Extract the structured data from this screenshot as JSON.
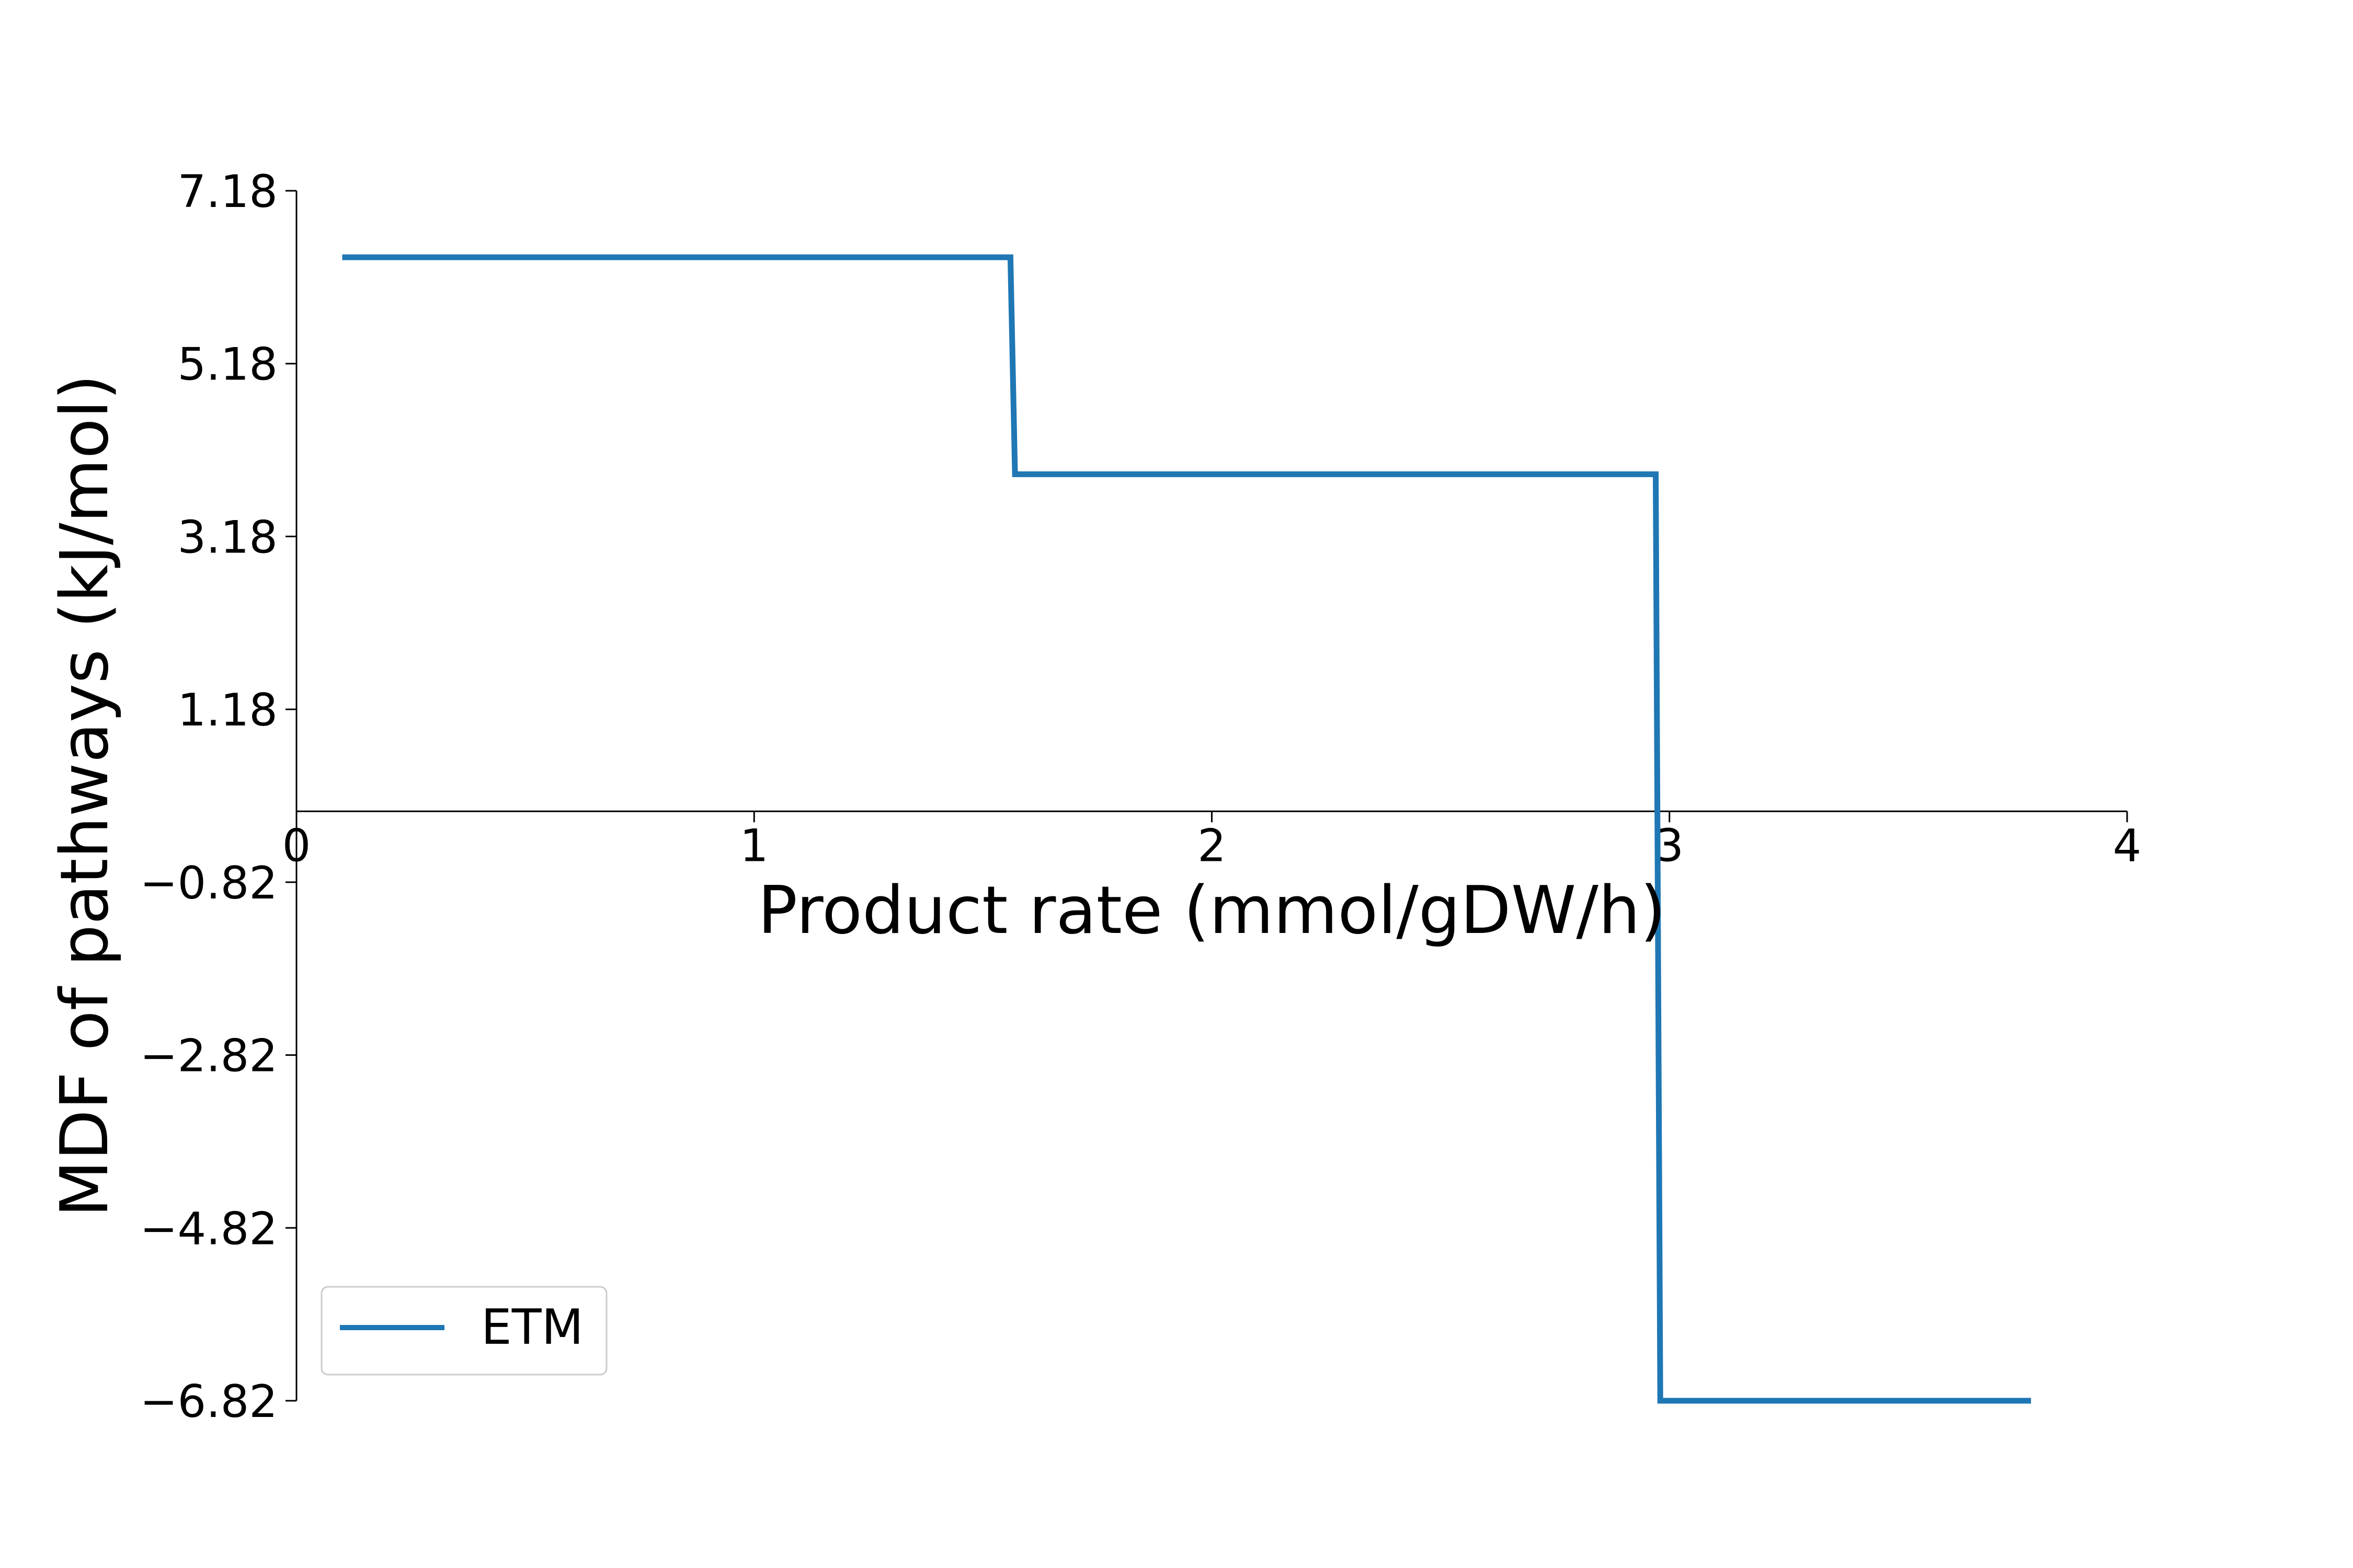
{
  "chart_data": {
    "type": "line",
    "title": "",
    "xlabel": "Product rate (mmol/gDW/h)",
    "ylabel": "MDF of pathways (kJ/mol)",
    "xlim": [
      0,
      4
    ],
    "ylim": [
      -6.82,
      7.18
    ],
    "x_ticks": [
      0,
      1,
      2,
      3,
      4
    ],
    "x_tick_labels": [
      "0",
      "1",
      "2",
      "3",
      "4"
    ],
    "y_ticks": [
      7.18,
      5.18,
      3.18,
      1.18,
      -0.82,
      -2.82,
      -4.82,
      -6.82
    ],
    "y_tick_labels": [
      "7.18",
      "5.18",
      "3.18",
      "1.18",
      "−0.82",
      "−2.82",
      "−4.82",
      "−6.82"
    ],
    "x_axis_position": "y=0",
    "grid": false,
    "legend_position": "lower-left",
    "series": [
      {
        "name": "ETM",
        "color": "#1f77b4",
        "x": [
          0.1,
          1.56,
          1.57,
          2.97,
          2.98,
          3.79
        ],
        "y": [
          6.41,
          6.41,
          3.9,
          3.9,
          -6.82,
          -6.82
        ]
      }
    ]
  }
}
